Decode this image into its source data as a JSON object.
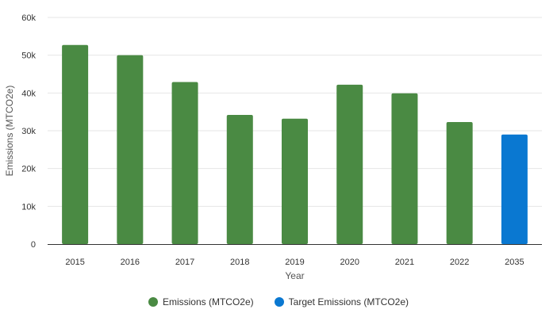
{
  "chart_data": {
    "type": "bar",
    "categories": [
      "2015",
      "2016",
      "2017",
      "2018",
      "2019",
      "2020",
      "2021",
      "2022",
      "2035"
    ],
    "series": [
      {
        "name": "Emissions (MTCO2e)",
        "color": "#4a8a43",
        "values": [
          52700,
          50000,
          42900,
          34200,
          33200,
          42200,
          39900,
          32300,
          null
        ]
      },
      {
        "name": "Target Emissions (MTCO2e)",
        "color": "#0a78d1",
        "values": [
          null,
          null,
          null,
          null,
          null,
          null,
          null,
          null,
          29000
        ]
      }
    ],
    "xlabel": "Year",
    "ylabel": "Emissions (MTCO2e)",
    "ylim": [
      0,
      60000
    ],
    "yticks": [
      0,
      10000,
      20000,
      30000,
      40000,
      50000,
      60000
    ],
    "ytick_labels": [
      "0",
      "10k",
      "20k",
      "30k",
      "40k",
      "50k",
      "60k"
    ],
    "grid": true,
    "legend_position": "bottom"
  }
}
